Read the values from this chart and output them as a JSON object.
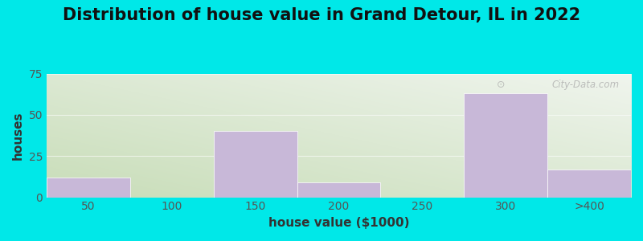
{
  "title": "Distribution of house value in Grand Detour, IL in 2022",
  "xlabel": "house value ($1000)",
  "ylabel": "houses",
  "bar_labels": [
    "50",
    "100",
    "150",
    "200",
    "250",
    "300",
    ">400"
  ],
  "bar_heights": [
    12,
    0,
    40,
    9,
    0,
    63,
    17
  ],
  "bar_color": "#c8b8d8",
  "bar_edge_color": "#c8b8d8",
  "ylim": [
    0,
    75
  ],
  "yticks": [
    0,
    25,
    50,
    75
  ],
  "background_color": "#00e8e8",
  "title_fontsize": 15,
  "axis_fontsize": 11,
  "tick_fontsize": 10,
  "watermark": "City-Data.com",
  "grad_color_left": "#c8ddb8",
  "grad_color_right": "#f0f5ee"
}
